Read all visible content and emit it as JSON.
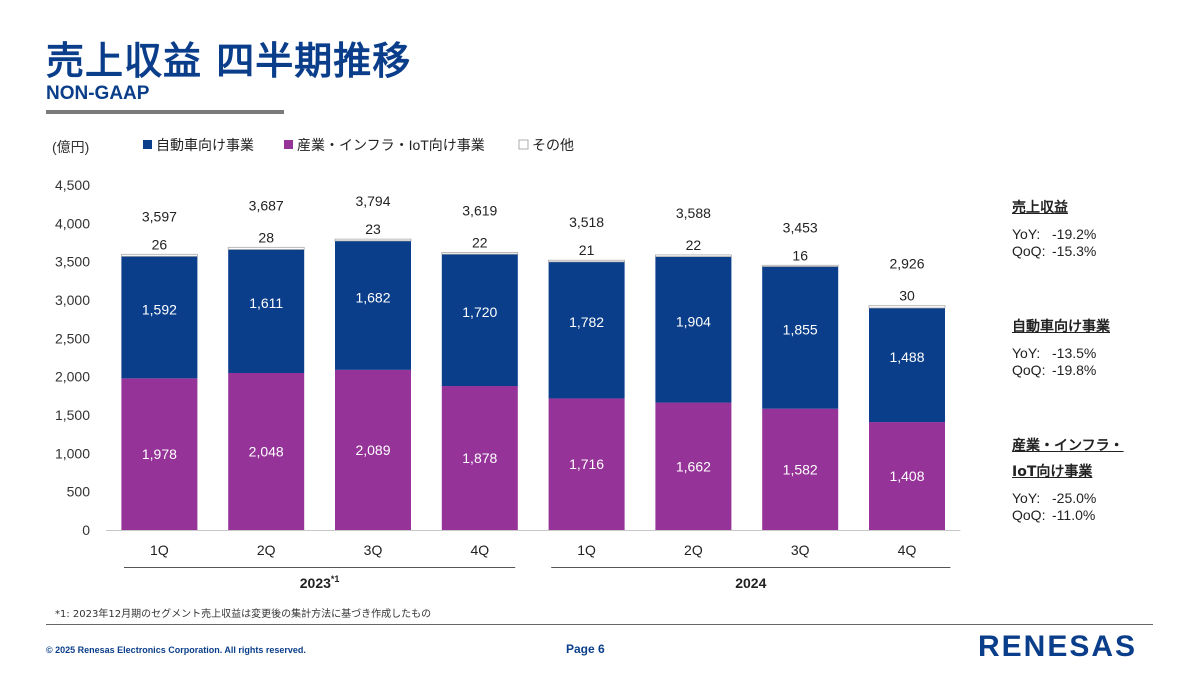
{
  "header": {
    "title": "売上収益 四半期推移",
    "subtitle": "NON-GAAP"
  },
  "chart_data": {
    "type": "bar",
    "stacked": true,
    "unit_label": "(億円)",
    "categories": [
      "1Q",
      "2Q",
      "3Q",
      "4Q",
      "1Q",
      "2Q",
      "3Q",
      "4Q"
    ],
    "groups": [
      {
        "label": "2023",
        "superscript": "*1",
        "span": [
          0,
          3
        ]
      },
      {
        "label": "2024",
        "superscript": "",
        "span": [
          4,
          7
        ]
      }
    ],
    "series": [
      {
        "name": "産業・インフラ・IoT向け事業",
        "color": "#953399",
        "values": [
          1978,
          2048,
          2089,
          1878,
          1716,
          1662,
          1582,
          1408
        ]
      },
      {
        "name": "自動車向け事業",
        "color": "#0a3e8a",
        "values": [
          1592,
          1611,
          1682,
          1720,
          1782,
          1904,
          1855,
          1488
        ]
      },
      {
        "name": "その他",
        "color": "#ffffff",
        "values": [
          26,
          28,
          23,
          22,
          21,
          22,
          16,
          30
        ]
      }
    ],
    "legend_order": [
      1,
      0,
      2
    ],
    "totals": [
      3597,
      3687,
      3794,
      3619,
      3518,
      3588,
      3453,
      2926
    ],
    "yticks": [
      0,
      500,
      1000,
      1500,
      2000,
      2500,
      3000,
      3500,
      4000,
      4500
    ],
    "ytick_labels": [
      "0",
      "500",
      "1,000",
      "1,500",
      "2,000",
      "2,500",
      "3,000",
      "3,500",
      "4,000",
      "4,500"
    ],
    "ylim": [
      0,
      4500
    ],
    "grid": false
  },
  "summary": [
    {
      "title": "売上収益",
      "title_line2": "",
      "yoy_label": "YoY:",
      "yoy": "-19.2%",
      "qoq_label": "QoQ:",
      "qoq": "-15.3%"
    },
    {
      "title": "自動車向け事業",
      "title_line2": "",
      "yoy_label": "YoY:",
      "yoy": "-13.5%",
      "qoq_label": "QoQ:",
      "qoq": "-19.8%"
    },
    {
      "title": "産業・インフラ・",
      "title_line2": "IoT向け事業",
      "yoy_label": "YoY:",
      "yoy": "-25.0%",
      "qoq_label": "QoQ:",
      "qoq": "-11.0%"
    }
  ],
  "footer": {
    "footnote": "*1: 2023年12月期のセグメント売上収益は変更後の集計方法に基づき作成したもの",
    "copyright": "© 2025 Renesas Electronics Corporation. All rights reserved.",
    "page": "Page 6",
    "logo_text": "RENESAS"
  },
  "colors": {
    "brand": "#0a3e8a",
    "automotive": "#0a3e8a",
    "industrial": "#953399",
    "other": "#ffffff"
  }
}
